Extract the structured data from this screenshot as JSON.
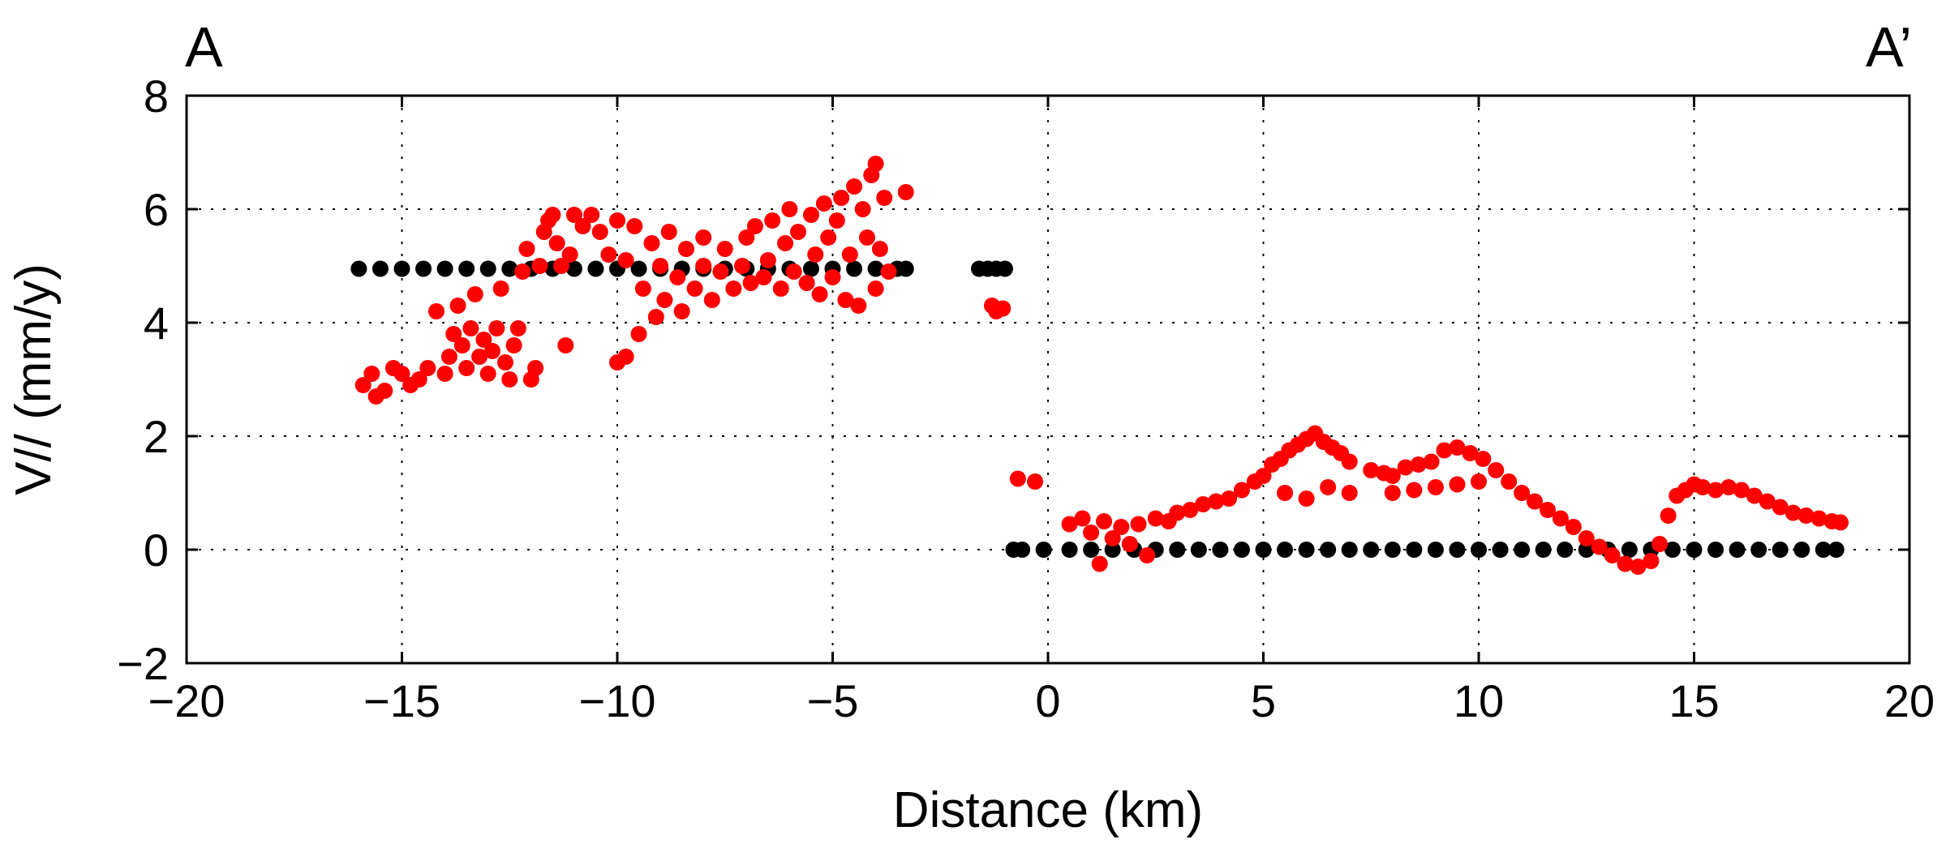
{
  "chart_data": {
    "type": "scatter",
    "title": "",
    "corner_labels": {
      "left": "A",
      "right": "A’"
    },
    "xlabel": "Distance (km)",
    "ylabel": "V// (mm/y)",
    "xlim": [
      -20,
      20
    ],
    "ylim": [
      -2,
      8
    ],
    "x_ticks": [
      -20,
      -15,
      -10,
      -5,
      0,
      5,
      10,
      15,
      20
    ],
    "y_ticks": [
      -2,
      0,
      2,
      4,
      6,
      8
    ],
    "x_tick_labels": [
      "−20",
      "−15",
      "−10",
      "−5",
      "0",
      "5",
      "10",
      "15",
      "20"
    ],
    "y_tick_labels": [
      "−2",
      "0",
      "2",
      "4",
      "6",
      "8"
    ],
    "grid": true,
    "legend": "none",
    "series": [
      {
        "color": "#000000",
        "marker": "filled-circle",
        "points": [
          [
            -16.0,
            4.95
          ],
          [
            -15.5,
            4.95
          ],
          [
            -15.0,
            4.95
          ],
          [
            -14.5,
            4.95
          ],
          [
            -14.0,
            4.95
          ],
          [
            -13.5,
            4.95
          ],
          [
            -13.0,
            4.95
          ],
          [
            -12.5,
            4.95
          ],
          [
            -12.0,
            4.95
          ],
          [
            -11.5,
            4.95
          ],
          [
            -11.0,
            4.95
          ],
          [
            -10.5,
            4.95
          ],
          [
            -10.0,
            4.95
          ],
          [
            -9.5,
            4.95
          ],
          [
            -9.0,
            4.95
          ],
          [
            -8.5,
            4.95
          ],
          [
            -8.0,
            4.95
          ],
          [
            -7.5,
            4.95
          ],
          [
            -7.0,
            4.95
          ],
          [
            -6.5,
            4.95
          ],
          [
            -6.0,
            4.95
          ],
          [
            -5.5,
            4.95
          ],
          [
            -5.0,
            4.95
          ],
          [
            -4.5,
            4.95
          ],
          [
            -4.0,
            4.95
          ],
          [
            -3.5,
            4.95
          ],
          [
            -3.3,
            4.95
          ],
          [
            -1.6,
            4.95
          ],
          [
            -1.4,
            4.95
          ],
          [
            -1.2,
            4.95
          ],
          [
            -1.0,
            4.95
          ],
          [
            -0.8,
            0.0
          ],
          [
            -0.6,
            0.0
          ],
          [
            -0.1,
            0.0
          ],
          [
            0.5,
            0.0
          ],
          [
            1.0,
            0.0
          ],
          [
            1.5,
            0.0
          ],
          [
            2.0,
            0.0
          ],
          [
            2.5,
            0.0
          ],
          [
            3.0,
            0.0
          ],
          [
            3.5,
            0.0
          ],
          [
            4.0,
            0.0
          ],
          [
            4.5,
            0.0
          ],
          [
            5.0,
            0.0
          ],
          [
            5.5,
            0.0
          ],
          [
            6.0,
            0.0
          ],
          [
            6.5,
            0.0
          ],
          [
            7.0,
            0.0
          ],
          [
            7.5,
            0.0
          ],
          [
            8.0,
            0.0
          ],
          [
            8.5,
            0.0
          ],
          [
            9.0,
            0.0
          ],
          [
            9.5,
            0.0
          ],
          [
            10.0,
            0.0
          ],
          [
            10.5,
            0.0
          ],
          [
            11.0,
            0.0
          ],
          [
            11.5,
            0.0
          ],
          [
            12.0,
            0.0
          ],
          [
            12.5,
            0.0
          ],
          [
            13.0,
            0.0
          ],
          [
            13.5,
            0.0
          ],
          [
            14.0,
            0.0
          ],
          [
            14.5,
            0.0
          ],
          [
            15.0,
            0.0
          ],
          [
            15.5,
            0.0
          ],
          [
            16.0,
            0.0
          ],
          [
            16.5,
            0.0
          ],
          [
            17.0,
            0.0
          ],
          [
            17.5,
            0.0
          ],
          [
            18.0,
            0.0
          ],
          [
            18.3,
            0.0
          ]
        ]
      },
      {
        "color": "#ff0000",
        "marker": "filled-circle",
        "points": [
          [
            -15.9,
            2.9
          ],
          [
            -15.7,
            3.1
          ],
          [
            -15.6,
            2.7
          ],
          [
            -15.4,
            2.8
          ],
          [
            -15.2,
            3.2
          ],
          [
            -15.0,
            3.1
          ],
          [
            -14.8,
            2.9
          ],
          [
            -14.6,
            3.0
          ],
          [
            -14.4,
            3.2
          ],
          [
            -14.2,
            4.2
          ],
          [
            -14.0,
            3.1
          ],
          [
            -13.9,
            3.4
          ],
          [
            -13.8,
            3.8
          ],
          [
            -13.7,
            4.3
          ],
          [
            -13.6,
            3.6
          ],
          [
            -13.5,
            3.2
          ],
          [
            -13.4,
            3.9
          ],
          [
            -13.3,
            4.5
          ],
          [
            -13.2,
            3.4
          ],
          [
            -13.1,
            3.7
          ],
          [
            -13.0,
            3.1
          ],
          [
            -12.9,
            3.5
          ],
          [
            -12.8,
            3.9
          ],
          [
            -12.7,
            4.6
          ],
          [
            -12.6,
            3.3
          ],
          [
            -12.5,
            3.0
          ],
          [
            -12.4,
            3.6
          ],
          [
            -12.3,
            3.9
          ],
          [
            -12.2,
            4.9
          ],
          [
            -12.1,
            5.3
          ],
          [
            -12.0,
            3.0
          ],
          [
            -11.9,
            3.2
          ],
          [
            -11.8,
            5.0
          ],
          [
            -11.7,
            5.6
          ],
          [
            -11.6,
            5.8
          ],
          [
            -11.5,
            5.9
          ],
          [
            -11.4,
            5.4
          ],
          [
            -11.3,
            5.0
          ],
          [
            -11.2,
            3.6
          ],
          [
            -11.1,
            5.2
          ],
          [
            -11.0,
            5.9
          ],
          [
            -10.8,
            5.7
          ],
          [
            -10.6,
            5.9
          ],
          [
            -10.4,
            5.6
          ],
          [
            -10.2,
            5.2
          ],
          [
            -10.0,
            5.8
          ],
          [
            -10.0,
            3.3
          ],
          [
            -9.8,
            5.1
          ],
          [
            -9.8,
            3.4
          ],
          [
            -9.6,
            5.7
          ],
          [
            -9.5,
            3.8
          ],
          [
            -9.4,
            4.6
          ],
          [
            -9.2,
            5.4
          ],
          [
            -9.1,
            4.1
          ],
          [
            -9.0,
            5.0
          ],
          [
            -8.9,
            4.4
          ],
          [
            -8.8,
            5.6
          ],
          [
            -8.6,
            4.8
          ],
          [
            -8.5,
            4.2
          ],
          [
            -8.4,
            5.3
          ],
          [
            -8.2,
            4.6
          ],
          [
            -8.0,
            5.0
          ],
          [
            -8.0,
            5.5
          ],
          [
            -7.8,
            4.4
          ],
          [
            -7.6,
            4.9
          ],
          [
            -7.5,
            5.3
          ],
          [
            -7.3,
            4.6
          ],
          [
            -7.1,
            5.0
          ],
          [
            -7.0,
            5.5
          ],
          [
            -6.9,
            4.7
          ],
          [
            -6.8,
            5.7
          ],
          [
            -6.6,
            4.8
          ],
          [
            -6.5,
            5.1
          ],
          [
            -6.4,
            5.8
          ],
          [
            -6.2,
            4.6
          ],
          [
            -6.1,
            5.4
          ],
          [
            -6.0,
            6.0
          ],
          [
            -5.9,
            4.9
          ],
          [
            -5.8,
            5.6
          ],
          [
            -5.6,
            4.7
          ],
          [
            -5.5,
            5.9
          ],
          [
            -5.4,
            5.2
          ],
          [
            -5.3,
            4.5
          ],
          [
            -5.2,
            6.1
          ],
          [
            -5.1,
            5.5
          ],
          [
            -5.0,
            4.8
          ],
          [
            -4.9,
            5.8
          ],
          [
            -4.8,
            6.2
          ],
          [
            -4.7,
            4.4
          ],
          [
            -4.6,
            5.2
          ],
          [
            -4.5,
            6.4
          ],
          [
            -4.4,
            4.3
          ],
          [
            -4.3,
            6.0
          ],
          [
            -4.2,
            5.5
          ],
          [
            -4.1,
            6.6
          ],
          [
            -4.0,
            4.6
          ],
          [
            -4.0,
            6.8
          ],
          [
            -3.9,
            5.3
          ],
          [
            -3.8,
            6.2
          ],
          [
            -3.7,
            4.9
          ],
          [
            -3.3,
            6.3
          ],
          [
            -1.3,
            4.3
          ],
          [
            -1.2,
            4.2
          ],
          [
            -1.05,
            4.25
          ],
          [
            -0.7,
            1.25
          ],
          [
            -0.3,
            1.2
          ],
          [
            0.5,
            0.45
          ],
          [
            0.8,
            0.55
          ],
          [
            1.0,
            0.3
          ],
          [
            1.2,
            -0.25
          ],
          [
            1.3,
            0.5
          ],
          [
            1.5,
            0.2
          ],
          [
            1.7,
            0.4
          ],
          [
            1.9,
            0.1
          ],
          [
            2.1,
            0.45
          ],
          [
            2.3,
            -0.1
          ],
          [
            2.5,
            0.55
          ],
          [
            2.8,
            0.5
          ],
          [
            3.0,
            0.65
          ],
          [
            3.3,
            0.7
          ],
          [
            3.6,
            0.8
          ],
          [
            3.9,
            0.85
          ],
          [
            4.2,
            0.9
          ],
          [
            4.5,
            1.05
          ],
          [
            4.8,
            1.2
          ],
          [
            5.0,
            1.3
          ],
          [
            5.2,
            1.5
          ],
          [
            5.4,
            1.6
          ],
          [
            5.6,
            1.75
          ],
          [
            5.8,
            1.85
          ],
          [
            6.0,
            1.95
          ],
          [
            6.2,
            2.05
          ],
          [
            6.4,
            1.9
          ],
          [
            6.6,
            1.8
          ],
          [
            6.8,
            1.7
          ],
          [
            7.0,
            1.55
          ],
          [
            5.5,
            1.0
          ],
          [
            6.0,
            0.9
          ],
          [
            6.5,
            1.1
          ],
          [
            7.0,
            1.0
          ],
          [
            7.5,
            1.4
          ],
          [
            7.8,
            1.35
          ],
          [
            8.0,
            1.3
          ],
          [
            8.3,
            1.45
          ],
          [
            8.6,
            1.5
          ],
          [
            8.9,
            1.55
          ],
          [
            9.2,
            1.75
          ],
          [
            9.5,
            1.8
          ],
          [
            9.8,
            1.7
          ],
          [
            10.1,
            1.6
          ],
          [
            10.4,
            1.4
          ],
          [
            8.0,
            1.0
          ],
          [
            8.5,
            1.05
          ],
          [
            9.0,
            1.1
          ],
          [
            9.5,
            1.15
          ],
          [
            10.0,
            1.2
          ],
          [
            10.7,
            1.2
          ],
          [
            11.0,
            1.0
          ],
          [
            11.3,
            0.85
          ],
          [
            11.6,
            0.7
          ],
          [
            11.9,
            0.55
          ],
          [
            12.2,
            0.4
          ],
          [
            12.5,
            0.2
          ],
          [
            12.8,
            0.05
          ],
          [
            13.1,
            -0.1
          ],
          [
            13.4,
            -0.25
          ],
          [
            13.7,
            -0.3
          ],
          [
            14.0,
            -0.2
          ],
          [
            14.2,
            0.1
          ],
          [
            14.4,
            0.6
          ],
          [
            14.6,
            0.95
          ],
          [
            14.8,
            1.05
          ],
          [
            15.0,
            1.15
          ],
          [
            15.2,
            1.1
          ],
          [
            15.5,
            1.05
          ],
          [
            15.8,
            1.1
          ],
          [
            16.1,
            1.05
          ],
          [
            16.4,
            0.95
          ],
          [
            16.7,
            0.85
          ],
          [
            17.0,
            0.75
          ],
          [
            17.3,
            0.65
          ],
          [
            17.6,
            0.6
          ],
          [
            17.9,
            0.55
          ],
          [
            18.2,
            0.5
          ],
          [
            18.4,
            0.48
          ]
        ]
      }
    ]
  }
}
